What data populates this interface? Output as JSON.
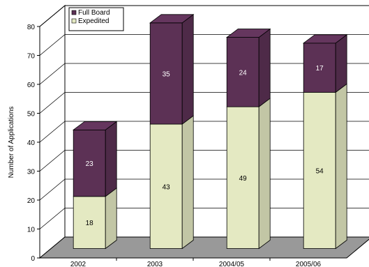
{
  "chart_data": {
    "type": "bar",
    "stacked": true,
    "three_d": true,
    "categories": [
      "2002",
      "2003",
      "2004/05",
      "2005/06"
    ],
    "series": [
      {
        "name": "Expedited",
        "values": [
          18,
          43,
          49,
          54
        ],
        "color": "#E4E9C2",
        "label_color": "#000000"
      },
      {
        "name": "Full Board",
        "values": [
          23,
          35,
          24,
          17
        ],
        "color": "#5C3155",
        "label_color": "#FFFFFF"
      }
    ],
    "legend_order": [
      "Full Board",
      "Expedited"
    ],
    "title": "",
    "xlabel": "",
    "ylabel": "Number of Applications",
    "ylim": [
      0,
      80
    ],
    "yticks": [
      0,
      10,
      20,
      30,
      40,
      50,
      60,
      70,
      80
    ],
    "grid": true,
    "legend_position": "top-left",
    "floor_color": "#999999"
  }
}
